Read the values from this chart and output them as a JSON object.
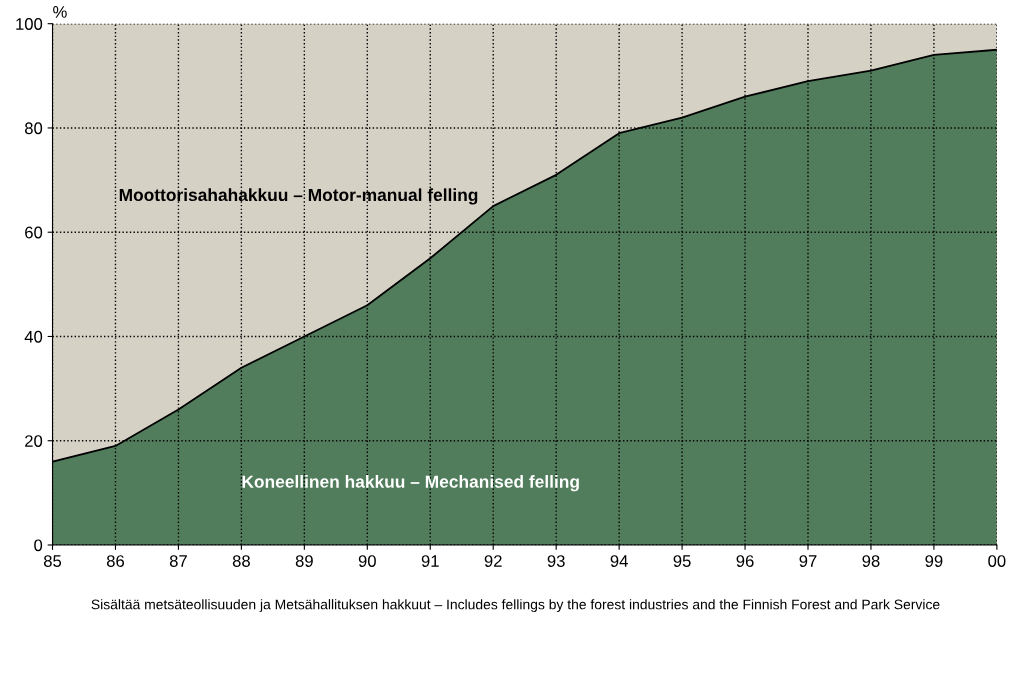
{
  "chart_data": {
    "type": "area",
    "stacked": true,
    "ylabel": "%",
    "x": [
      1985,
      1986,
      1987,
      1988,
      1989,
      1990,
      1991,
      1992,
      1993,
      1994,
      1995,
      1996,
      1997,
      1998,
      1999,
      2000
    ],
    "series": [
      {
        "name": "Koneellinen hakkuu – Mechanised felling",
        "color": "#527d5c",
        "values": [
          16,
          19,
          26,
          34,
          40,
          46,
          55,
          65,
          71,
          79,
          82,
          86,
          89,
          91,
          94,
          95
        ]
      },
      {
        "name": "Moottorisahahakkuu – Motor-manual felling",
        "color": "#d6d1c5",
        "values": [
          84,
          81,
          74,
          66,
          60,
          54,
          45,
          35,
          29,
          21,
          18,
          14,
          11,
          9,
          6,
          5
        ]
      }
    ],
    "xlim": [
      1985,
      2000
    ],
    "xticks": [
      {
        "value": 1985,
        "label": "85"
      },
      {
        "value": 1986,
        "label": "86"
      },
      {
        "value": 1987,
        "label": "87"
      },
      {
        "value": 1988,
        "label": "88"
      },
      {
        "value": 1989,
        "label": "89"
      },
      {
        "value": 1990,
        "label": "90"
      },
      {
        "value": 1991,
        "label": "91"
      },
      {
        "value": 1992,
        "label": "92"
      },
      {
        "value": 1993,
        "label": "93"
      },
      {
        "value": 1994,
        "label": "94"
      },
      {
        "value": 1995,
        "label": "95"
      },
      {
        "value": 1996,
        "label": "96"
      },
      {
        "value": 1997,
        "label": "97"
      },
      {
        "value": 1998,
        "label": "98"
      },
      {
        "value": 1999,
        "label": "99"
      },
      {
        "value": 2000,
        "label": "00"
      }
    ],
    "ylim": [
      0,
      100
    ],
    "yticks": [
      0,
      20,
      40,
      60,
      80,
      100
    ],
    "grid": true,
    "line_style": "dotted",
    "legend": false,
    "annotations": [
      "Sisältää metsäteollisuuden ja Metsähallituksen hakkuut – Includes fellings by the forest industries and the Finnish Forest and Park Service"
    ]
  }
}
